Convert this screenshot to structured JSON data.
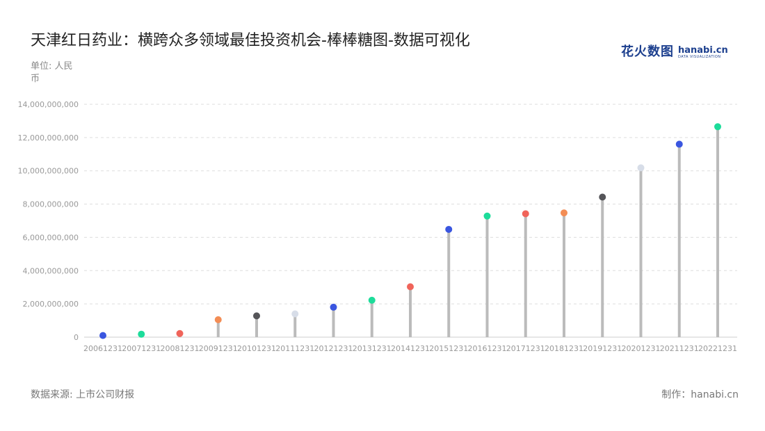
{
  "title": "天津红日药业：横跨众多领域最佳投资机会-棒棒糖图-数据可视化",
  "unit_label": "单位: 人民币",
  "source_label": "数据来源: 上市公司财报",
  "credit_label": "制作：hanabi.cn",
  "logo": {
    "cn": "花火数图",
    "en": "hanabi.cn",
    "en_sub": "DATA VISUALIZATION"
  },
  "colors": {
    "stem": "#bbbbbb",
    "grid": "#dddddd",
    "axis": "#cccccc",
    "brand": "#1c3f8e"
  },
  "chart_data": {
    "type": "lollipop",
    "title": "天津红日药业：横跨众多领域最佳投资机会-棒棒糖图-数据可视化",
    "ylabel": "单位: 人民币",
    "ylim": [
      0,
      14000000000
    ],
    "yticks": [
      0,
      2000000000,
      4000000000,
      6000000000,
      8000000000,
      10000000000,
      12000000000,
      14000000000
    ],
    "ytick_labels": [
      "0",
      "2,000,000,000",
      "4,000,000,000",
      "6,000,000,000",
      "8,000,000,000",
      "10,000,000,000",
      "12,000,000,000",
      "14,000,000,000"
    ],
    "grid": true,
    "categories": [
      "20061231",
      "20071231",
      "20081231",
      "20091231",
      "20101231",
      "20111231",
      "20121231",
      "20131231",
      "20141231",
      "20151231",
      "20161231",
      "20171231",
      "20181231",
      "20191231",
      "20201231",
      "20211231",
      "20221231"
    ],
    "values": [
      100000000,
      180000000,
      220000000,
      1050000000,
      1280000000,
      1400000000,
      1800000000,
      2220000000,
      3030000000,
      6480000000,
      7280000000,
      7420000000,
      7470000000,
      8420000000,
      10180000000,
      11600000000,
      12650000000
    ],
    "point_colors": [
      "#3a56e0",
      "#1ddc9a",
      "#f0645a",
      "#f38d55",
      "#555559",
      "#d7dde8",
      "#3a56e0",
      "#1ddc9a",
      "#f0645a",
      "#3a56e0",
      "#1ddc9a",
      "#f0645a",
      "#f38d55",
      "#555559",
      "#d7dde8",
      "#3a56e0",
      "#1ddc9a"
    ]
  }
}
